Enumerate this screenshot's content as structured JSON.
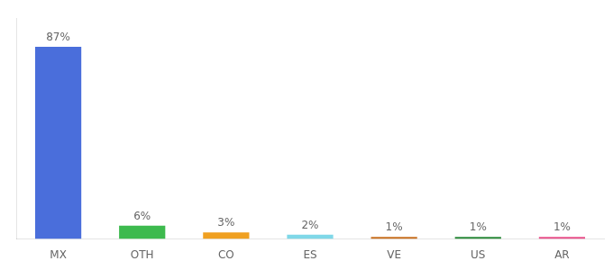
{
  "chart_data": {
    "type": "bar",
    "categories": [
      "MX",
      "OTH",
      "CO",
      "ES",
      "VE",
      "US",
      "AR"
    ],
    "values": [
      87,
      6,
      3,
      2,
      1,
      1,
      1
    ],
    "value_labels": [
      "87%",
      "6%",
      "3%",
      "2%",
      "1%",
      "1%",
      "1%"
    ],
    "colors": [
      "#4a6edb",
      "#3dba4e",
      "#f0a020",
      "#7fd8e8",
      "#c87020",
      "#2a8a3a",
      "#e8508a"
    ],
    "ylim": [
      0,
      100
    ],
    "grid": false,
    "data_labels": true,
    "tick_labels": "x"
  }
}
